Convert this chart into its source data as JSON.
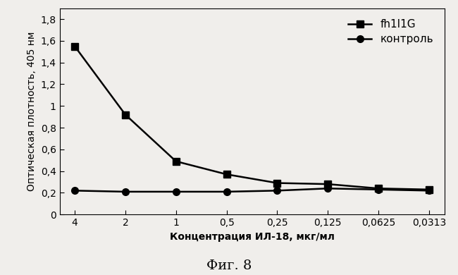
{
  "x_labels": [
    "4",
    "2",
    "1",
    "0,5",
    "0,25",
    "0,125",
    "0,0625",
    "0,0313"
  ],
  "x_values": [
    0,
    1,
    2,
    3,
    4,
    5,
    6,
    7
  ],
  "series1_label": "fh1I1G",
  "series1_values": [
    1.55,
    0.92,
    0.49,
    0.37,
    0.29,
    0.28,
    0.24,
    0.23
  ],
  "series1_color": "#000000",
  "series1_marker": "s",
  "series2_label": "контроль",
  "series2_values": [
    0.22,
    0.21,
    0.21,
    0.21,
    0.22,
    0.24,
    0.23,
    0.22
  ],
  "series2_color": "#000000",
  "series2_marker": "o",
  "ylabel": "Оптическая плотность, 405 нм",
  "xlabel": "Концентрация ИЛ-18, мкг/мл",
  "caption": "Фиг. 8",
  "ylim": [
    0,
    1.9
  ],
  "yticks": [
    0,
    0.2,
    0.4,
    0.6,
    0.8,
    1.0,
    1.2,
    1.4,
    1.6,
    1.8
  ],
  "ytick_labels": [
    "0",
    "0,2",
    "0,4",
    "0,6",
    "0,8",
    "1",
    "1,2",
    "1,4",
    "1,6",
    "1,8"
  ],
  "background_color": "#f0eeeb",
  "plot_bg_color": "#f0eeeb",
  "line_width": 1.8,
  "marker_size": 7,
  "font_size": 10,
  "legend_fontsize": 11,
  "caption_fontsize": 14,
  "tick_label_size": 10
}
